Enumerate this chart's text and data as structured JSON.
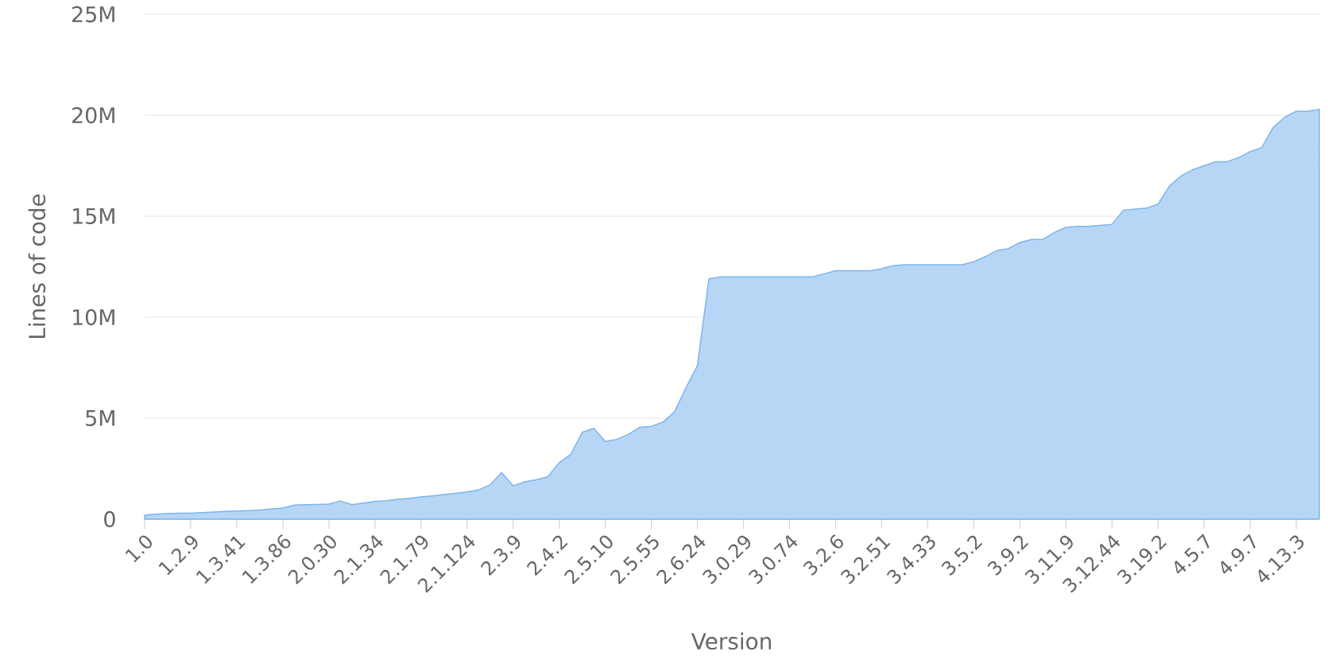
{
  "chart_data": {
    "type": "area",
    "xlabel": "Version",
    "ylabel": "Lines of code",
    "categories": [
      "1.0",
      null,
      null,
      null,
      "1.2.9",
      null,
      null,
      null,
      "1.3.41",
      null,
      null,
      null,
      "1.3.86",
      null,
      null,
      null,
      "2.0.30",
      null,
      null,
      null,
      "2.1.34",
      null,
      null,
      null,
      "2.1.79",
      null,
      null,
      null,
      "2.1.124",
      null,
      null,
      null,
      "2.3.9",
      null,
      null,
      null,
      "2.4.2",
      null,
      null,
      null,
      "2.5.10",
      null,
      null,
      null,
      "2.5.55",
      null,
      null,
      null,
      "2.6.24",
      null,
      null,
      null,
      "3.0.29",
      null,
      null,
      null,
      "3.0.74",
      null,
      null,
      null,
      "3.2.6",
      null,
      null,
      null,
      "3.2.51",
      null,
      null,
      null,
      "3.4.33",
      null,
      null,
      null,
      "3.5.2",
      null,
      null,
      null,
      "3.9.2",
      null,
      null,
      null,
      "3.11.9",
      null,
      null,
      null,
      "3.12.44",
      null,
      null,
      null,
      "3.19.2",
      null,
      null,
      null,
      "4.5.7",
      null,
      null,
      null,
      "4.9.7",
      null,
      null,
      null,
      "4.13.3",
      null,
      null
    ],
    "values": [
      200000,
      250000,
      280000,
      300000,
      300000,
      320000,
      350000,
      380000,
      400000,
      420000,
      450000,
      500000,
      550000,
      700000,
      720000,
      730000,
      750000,
      900000,
      720000,
      800000,
      880000,
      920000,
      980000,
      1030000,
      1100000,
      1150000,
      1220000,
      1280000,
      1350000,
      1450000,
      1700000,
      2300000,
      1650000,
      1850000,
      1950000,
      2100000,
      2800000,
      3200000,
      4300000,
      4500000,
      3850000,
      3950000,
      4200000,
      4550000,
      4600000,
      4800000,
      5300000,
      6500000,
      7600000,
      11900000,
      12000000,
      12000000,
      12000000,
      12000000,
      12000000,
      12000000,
      12000000,
      12000000,
      12000000,
      12150000,
      12300000,
      12300000,
      12300000,
      12300000,
      12400000,
      12550000,
      12600000,
      12600000,
      12600000,
      12600000,
      12600000,
      12600000,
      12750000,
      13000000,
      13300000,
      13400000,
      13700000,
      13850000,
      13850000,
      14200000,
      14450000,
      14500000,
      14500000,
      14550000,
      14600000,
      15300000,
      15350000,
      15400000,
      15600000,
      16500000,
      17000000,
      17300000,
      17500000,
      17700000,
      17700000,
      17900000,
      18200000,
      18400000,
      19400000,
      19900000,
      20200000,
      20200000,
      20300000
    ],
    "color": "#7cb5ec",
    "ylim": [
      0,
      25000000
    ],
    "yticks": [
      {
        "value": 0,
        "label": "0"
      },
      {
        "value": 5000000,
        "label": "5M"
      },
      {
        "value": 10000000,
        "label": "10M"
      },
      {
        "value": 15000000,
        "label": "15M"
      },
      {
        "value": 20000000,
        "label": "20M"
      },
      {
        "value": 25000000,
        "label": "25M"
      }
    ],
    "grid": "y"
  }
}
